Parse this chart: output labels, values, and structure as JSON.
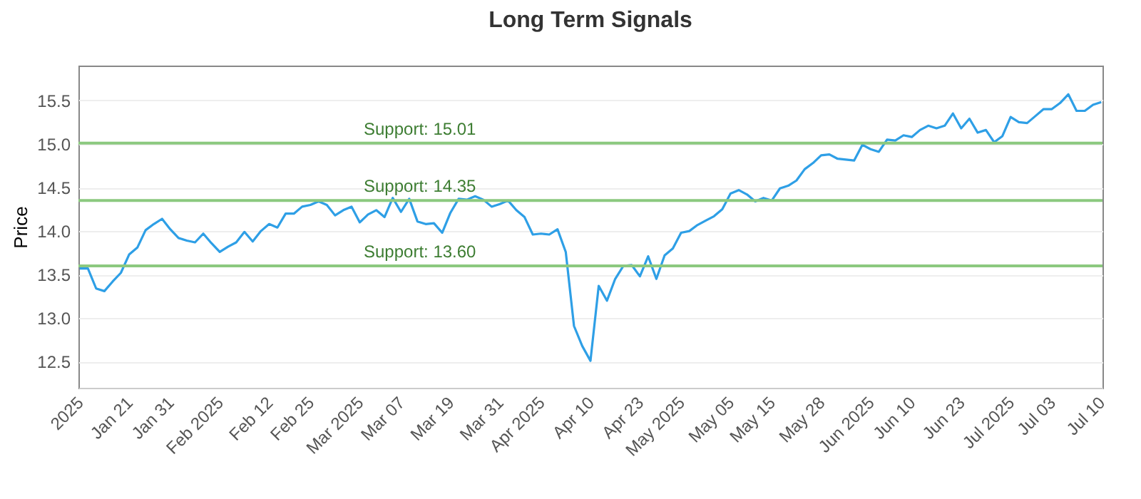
{
  "chart_data": {
    "type": "line",
    "title": "Long Term Signals",
    "ylabel": "Price",
    "categories": [
      "2025",
      null,
      null,
      null,
      null,
      null,
      "Jan 21",
      null,
      null,
      null,
      null,
      "Jan 31",
      null,
      null,
      null,
      null,
      null,
      "Feb 2025",
      null,
      null,
      null,
      null,
      null,
      "Feb 12",
      null,
      null,
      null,
      null,
      "Feb 25",
      null,
      null,
      null,
      null,
      null,
      "Mar 2025",
      null,
      null,
      null,
      null,
      "Mar 07",
      null,
      null,
      null,
      null,
      null,
      "Mar 19",
      null,
      null,
      null,
      null,
      null,
      "Mar 31",
      null,
      null,
      null,
      null,
      "Apr 2025",
      null,
      null,
      null,
      null,
      null,
      "Apr 10",
      null,
      null,
      null,
      null,
      null,
      "Apr 23",
      null,
      null,
      null,
      null,
      "May 2025",
      null,
      null,
      null,
      null,
      null,
      "May 05",
      null,
      null,
      null,
      null,
      "May 15",
      null,
      null,
      null,
      null,
      null,
      "May 28",
      null,
      null,
      null,
      null,
      null,
      "Jun 2025",
      null,
      null,
      null,
      null,
      "Jun 10",
      null,
      null,
      null,
      null,
      null,
      "Jun 23",
      null,
      null,
      null,
      null,
      null,
      "Jul 2025",
      null,
      null,
      null,
      null,
      "Jul 03",
      null,
      null,
      null,
      null,
      null,
      "Jul 10"
    ],
    "series": [
      {
        "color": "#2e9fe6",
        "values": [
          13.57,
          13.57,
          13.34,
          13.31,
          13.42,
          13.52,
          13.73,
          13.81,
          14.01,
          14.08,
          14.14,
          14.02,
          13.92,
          13.89,
          13.87,
          13.97,
          13.86,
          13.76,
          13.82,
          13.87,
          13.99,
          13.88,
          14.0,
          14.08,
          14.04,
          14.2,
          14.2,
          14.28,
          14.3,
          14.34,
          14.3,
          14.18,
          14.24,
          14.28,
          14.1,
          14.19,
          14.24,
          14.16,
          14.38,
          14.22,
          14.37,
          14.11,
          14.08,
          14.09,
          13.98,
          14.21,
          14.37,
          14.36,
          14.4,
          14.36,
          14.28,
          14.31,
          14.35,
          14.24,
          14.16,
          13.96,
          13.97,
          13.96,
          14.02,
          13.76,
          12.91,
          12.68,
          12.51,
          13.37,
          13.2,
          13.45,
          13.6,
          13.61,
          13.48,
          13.71,
          13.45,
          13.72,
          13.8,
          13.98,
          14.0,
          14.07,
          14.12,
          14.17,
          14.25,
          14.43,
          14.47,
          14.42,
          14.34,
          14.38,
          14.35,
          14.49,
          14.52,
          14.58,
          14.71,
          14.78,
          14.87,
          14.88,
          14.83,
          14.82,
          14.81,
          14.99,
          14.94,
          14.91,
          15.05,
          15.04,
          15.1,
          15.08,
          15.16,
          15.21,
          15.18,
          15.21,
          15.35,
          15.18,
          15.29,
          15.13,
          15.16,
          15.02,
          15.09,
          15.31,
          15.25,
          15.24,
          15.32,
          15.4,
          15.4,
          15.47,
          15.57,
          15.38,
          15.38,
          15.45,
          15.48
        ]
      }
    ],
    "ylim": [
      12.2,
      15.9
    ],
    "yticks": [
      12.5,
      {
        "value": 13,
        "label": "13.0"
      },
      13.5,
      {
        "value": 14,
        "label": "14.0"
      },
      14.5,
      {
        "value": 15,
        "label": "15.0"
      },
      15.5
    ],
    "grid": "y",
    "ref_lines": [
      {
        "axis": "y",
        "value": 15.01,
        "label": "Support: 15.01",
        "color": "#8cc97f"
      },
      {
        "axis": "y",
        "value": 14.35,
        "label": "Support: 14.35",
        "color": "#8cc97f"
      },
      {
        "axis": "y",
        "value": 13.6,
        "label": "Support: 13.60",
        "color": "#8cc97f"
      }
    ]
  }
}
